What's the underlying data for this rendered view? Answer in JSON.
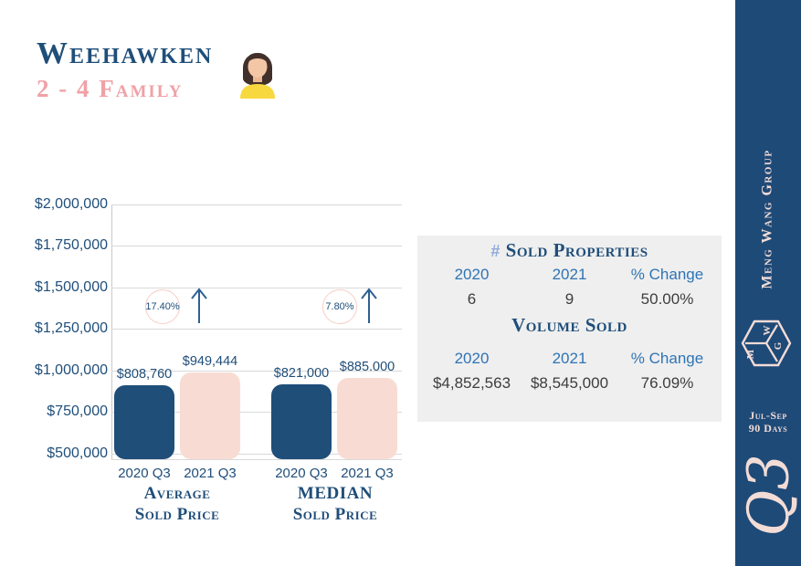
{
  "header": {
    "title": "Weehawken",
    "subtitle": "2 - 4 Family"
  },
  "chart_data": {
    "type": "bar",
    "y_ticks": [
      "$2,000,000",
      "$1,750,000",
      "$1,500,000",
      "$1,250,000",
      "$1,000,000",
      "$750,000",
      "$500,000"
    ],
    "ylim": [
      500000,
      2000000
    ],
    "grid": true,
    "series_colors": {
      "2020": "#1f4e79",
      "2021": "#f8dcd4"
    },
    "groups": [
      {
        "label_line1": "Average",
        "label_line2": "Sold Price",
        "categories": [
          "2020 Q3",
          "2021 Q3"
        ],
        "values": [
          808760,
          949444
        ],
        "value_labels": [
          "$808,760",
          "$949,444"
        ],
        "change": "17.40%",
        "change_direction": "up"
      },
      {
        "label_line1": "MEDIAN",
        "label_line2": "Sold Price",
        "categories": [
          "2020 Q3",
          "2021 Q3"
        ],
        "values": [
          821000,
          885000
        ],
        "value_labels": [
          "$821,000",
          "$885.000"
        ],
        "change": "7.80%",
        "change_direction": "up"
      }
    ]
  },
  "stats": {
    "sold_properties": {
      "hash": "#",
      "title": "Sold Properties",
      "headers": [
        "2020",
        "2021",
        "% Change"
      ],
      "values": [
        "6",
        "9",
        "50.00%"
      ]
    },
    "volume_sold": {
      "title": "Volume Sold",
      "headers": [
        "2020",
        "2021",
        "% Change"
      ],
      "values": [
        "$4,852,563",
        "$8,545,000",
        "76.09%"
      ]
    }
  },
  "sidebar": {
    "brand": "Meng Wang Group",
    "logo_letters": [
      "M",
      "W",
      "G"
    ],
    "period_line1": "Jul-Sep",
    "period_line2": "90 Days",
    "quarter": "Q3"
  },
  "colors": {
    "navy": "#1f4e79",
    "sidebar_navy": "#1e4a78",
    "pink_accent": "#f0a1a7",
    "bar_pink": "#f8dcd4",
    "badge_ring": "#f7cdc6",
    "panel_gray": "#efefef",
    "table_header_blue": "#2e74b5",
    "cream": "#f3dcd6",
    "gridline": "#d9d9d9"
  }
}
